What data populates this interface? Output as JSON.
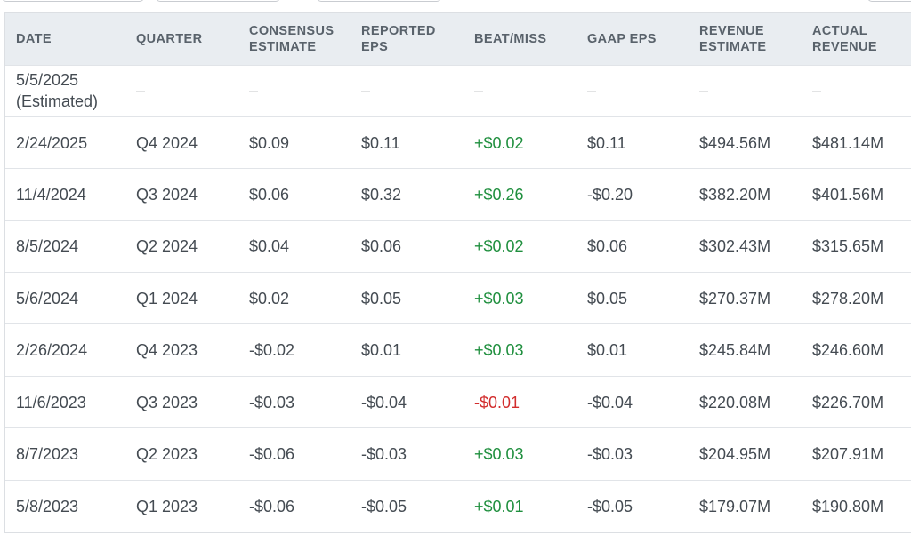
{
  "columns": [
    "DATE",
    "QUARTER",
    "CONSENSUS ESTIMATE",
    "REPORTED EPS",
    "BEAT/MISS",
    "GAAP EPS",
    "REVENUE ESTIMATE",
    "ACTUAL REVENUE"
  ],
  "rows": [
    [
      "5/5/2025 (Estimated)",
      "–",
      "–",
      "–",
      "–",
      "–",
      "–",
      "–"
    ],
    [
      "2/24/2025",
      "Q4 2024",
      "$0.09",
      "$0.11",
      "+$0.02",
      "$0.11",
      "$494.56M",
      "$481.14M"
    ],
    [
      "11/4/2024",
      "Q3 2024",
      "$0.06",
      "$0.32",
      "+$0.26",
      "-$0.20",
      "$382.20M",
      "$401.56M"
    ],
    [
      "8/5/2024",
      "Q2 2024",
      "$0.04",
      "$0.06",
      "+$0.02",
      "$0.06",
      "$302.43M",
      "$315.65M"
    ],
    [
      "5/6/2024",
      "Q1 2024",
      "$0.02",
      "$0.05",
      "+$0.03",
      "$0.05",
      "$270.37M",
      "$278.20M"
    ],
    [
      "2/26/2024",
      "Q4 2023",
      "-$0.02",
      "$0.01",
      "+$0.03",
      "$0.01",
      "$245.84M",
      "$246.60M"
    ],
    [
      "11/6/2023",
      "Q3 2023",
      "-$0.03",
      "-$0.04",
      "-$0.01",
      "-$0.04",
      "$220.08M",
      "$226.70M"
    ],
    [
      "8/7/2023",
      "Q2 2023",
      "-$0.06",
      "-$0.03",
      "+$0.03",
      "-$0.03",
      "$204.95M",
      "$207.91M"
    ],
    [
      "5/8/2023",
      "Q1 2023",
      "-$0.06",
      "-$0.05",
      "+$0.01",
      "-$0.05",
      "$179.07M",
      "$190.80M"
    ]
  ],
  "colors": {
    "beat": "#1f8f3e",
    "miss": "#d22d2d",
    "header_bg": "#e9edf1"
  }
}
